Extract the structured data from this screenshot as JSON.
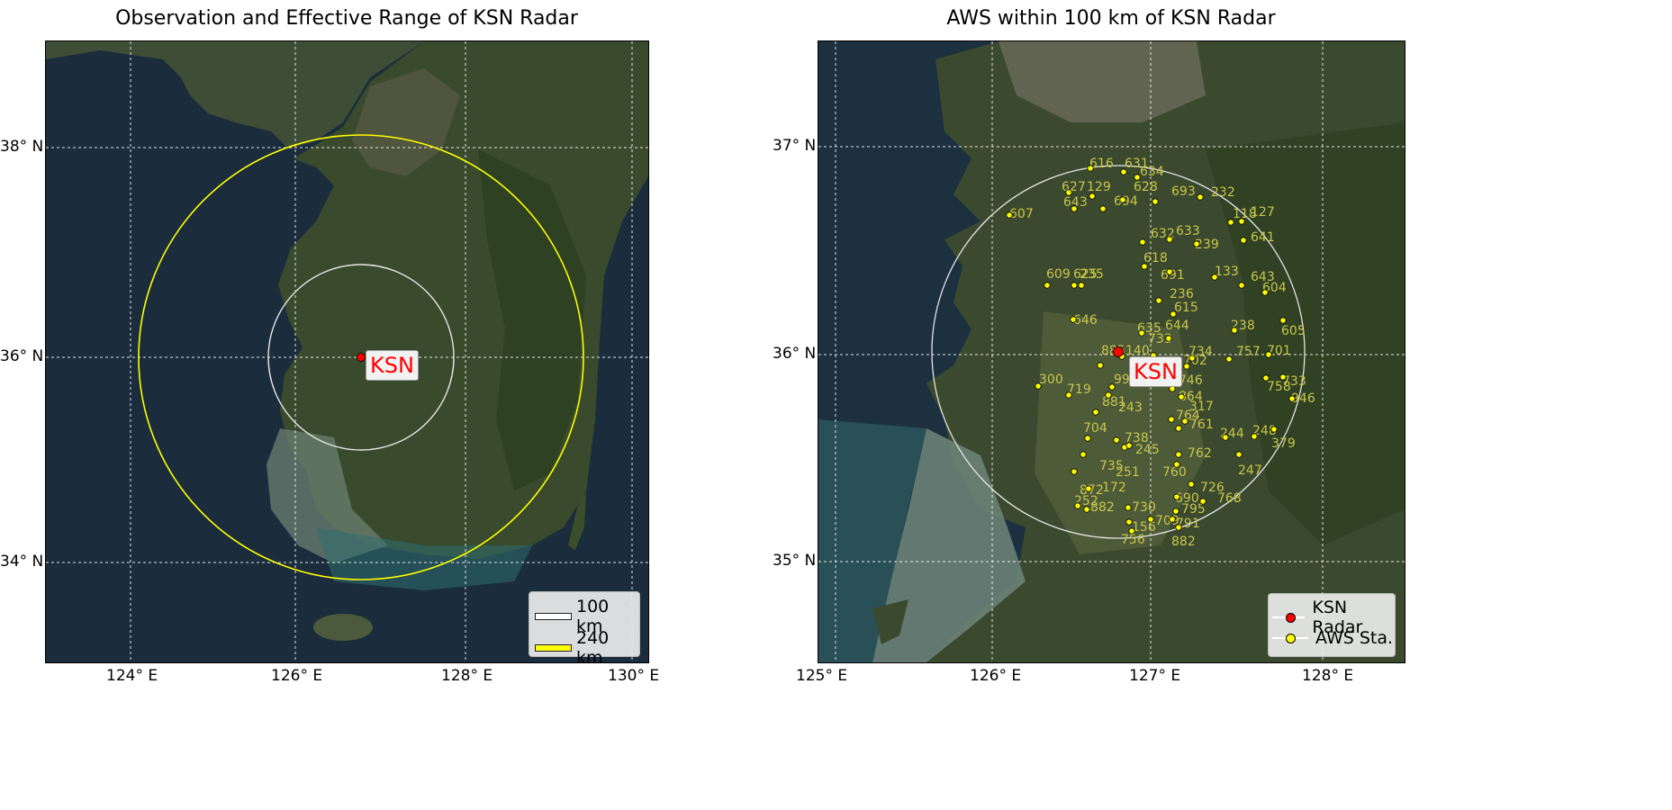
{
  "left_panel": {
    "title": "Observation and Effective Range of KSN Radar",
    "radar_label": "KSN",
    "lat_ticks": [
      "38° N",
      "36° N",
      "34° N"
    ],
    "lon_ticks": [
      "124° E",
      "126° E",
      "128° E",
      "130° E"
    ],
    "legend": [
      {
        "label": "100 km",
        "color": "#ffffff"
      },
      {
        "label": "240 km",
        "color": "#ffff00"
      }
    ]
  },
  "right_panel": {
    "title": "AWS within 100 km of KSN Radar",
    "radar_label": "KSN",
    "lat_ticks": [
      "37° N",
      "36° N",
      "35° N"
    ],
    "lon_ticks": [
      "125° E",
      "126° E",
      "127° E",
      "128° E"
    ],
    "legend": [
      {
        "label": "KSN Radar",
        "color": "#ff0000"
      },
      {
        "label": "AWS Sta.",
        "color": "#ffff00"
      }
    ],
    "station_labels": [
      "616",
      "631",
      "634",
      "627",
      "129",
      "694",
      "628",
      "693",
      "232",
      "607",
      "643",
      "118",
      "127",
      "632",
      "633",
      "641",
      "239",
      "618",
      "691",
      "609",
      "625",
      "235",
      "133",
      "643",
      "604",
      "236",
      "615",
      "646",
      "635",
      "644",
      "605",
      "733",
      "238",
      "140",
      "701",
      "734",
      "757",
      "702",
      "885",
      "994",
      "746",
      "758",
      "733",
      "300",
      "719",
      "864",
      "946",
      "881",
      "243",
      "317",
      "764",
      "761",
      "244",
      "248",
      "704",
      "738",
      "245",
      "379",
      "762",
      "735",
      "251",
      "760",
      "247",
      "872",
      "172",
      "726",
      "690",
      "768",
      "252",
      "882",
      "730",
      "795",
      "709",
      "791",
      "156",
      "756",
      "882"
    ]
  }
}
